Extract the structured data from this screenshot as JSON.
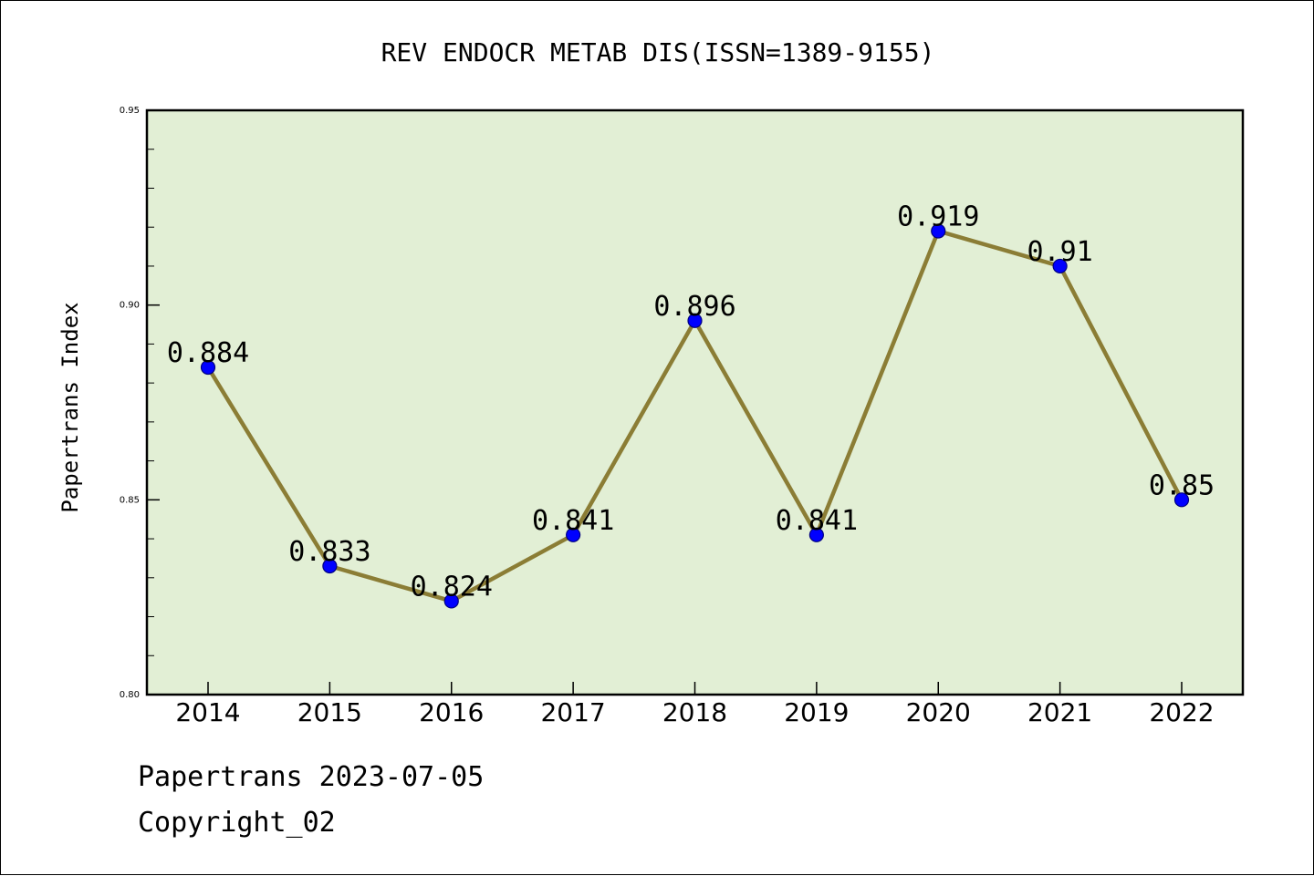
{
  "chart_data": {
    "type": "line",
    "title": "REV ENDOCR METAB DIS(ISSN=1389-9155)",
    "xlabel": "",
    "ylabel": "Papertrans Index",
    "categories": [
      "2014",
      "2015",
      "2016",
      "2017",
      "2018",
      "2019",
      "2020",
      "2021",
      "2022"
    ],
    "values": [
      0.884,
      0.833,
      0.824,
      0.841,
      0.896,
      0.841,
      0.919,
      0.91,
      0.85
    ],
    "data_labels": [
      "0.884",
      "0.833",
      "0.824",
      "0.841",
      "0.896",
      "0.841",
      "0.919",
      "0.91",
      "0.85"
    ],
    "ylim": [
      0.8,
      0.95
    ],
    "yticks": [
      0.8,
      0.85,
      0.9,
      0.95
    ],
    "ytick_labels": [
      "0.80",
      "0.85",
      "0.90",
      "0.95"
    ],
    "y_minor_step": 0.01,
    "grid": false,
    "colors": {
      "plot_background": "#e2efd5",
      "line": "#8b7d35",
      "marker": "#0000ff",
      "marker_edge": "#000080",
      "axes": "#000000"
    }
  },
  "footer": {
    "line1": "Papertrans 2023-07-05",
    "line2": "Copyright_02"
  }
}
